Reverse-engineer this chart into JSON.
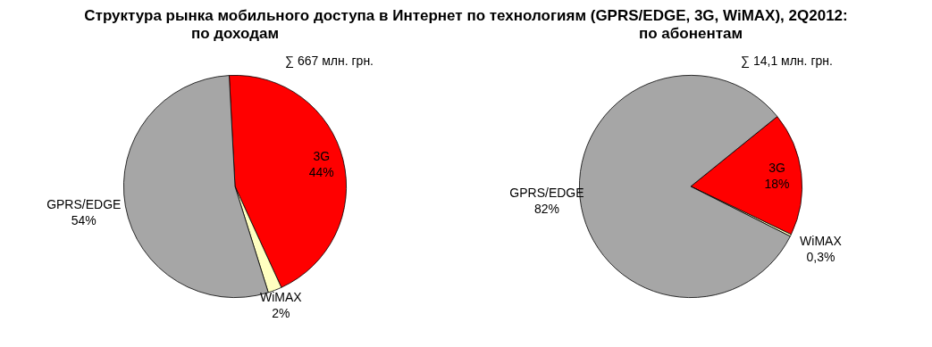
{
  "chart_data": [
    {
      "type": "pie",
      "title": "Структура рынка мобильного доступа в Интернет по технологиям (GPRS/EDGE, 3G, WiMAX), 2Q2012:",
      "subtitle": "по доходам",
      "categories": [
        "3G",
        "WiMAX",
        "GPRS/EDGE"
      ],
      "values": [
        44,
        2,
        54
      ],
      "colors": [
        "#ff0000",
        "#ffffc0",
        "#a6a6a6"
      ],
      "value_labels": [
        "44%",
        "2%",
        "54%"
      ],
      "annotations": [
        "∑ 667 млн. грн."
      ]
    },
    {
      "type": "pie",
      "subtitle": "по абонентам",
      "categories": [
        "3G",
        "WiMAX",
        "GPRS/EDGE"
      ],
      "values": [
        18,
        0.3,
        82
      ],
      "colors": [
        "#ff0000",
        "#ffffc0",
        "#a6a6a6"
      ],
      "value_labels": [
        "18%",
        "0,3%",
        "82%"
      ],
      "annotations": [
        "∑ 14,1 млн. грн."
      ]
    }
  ]
}
